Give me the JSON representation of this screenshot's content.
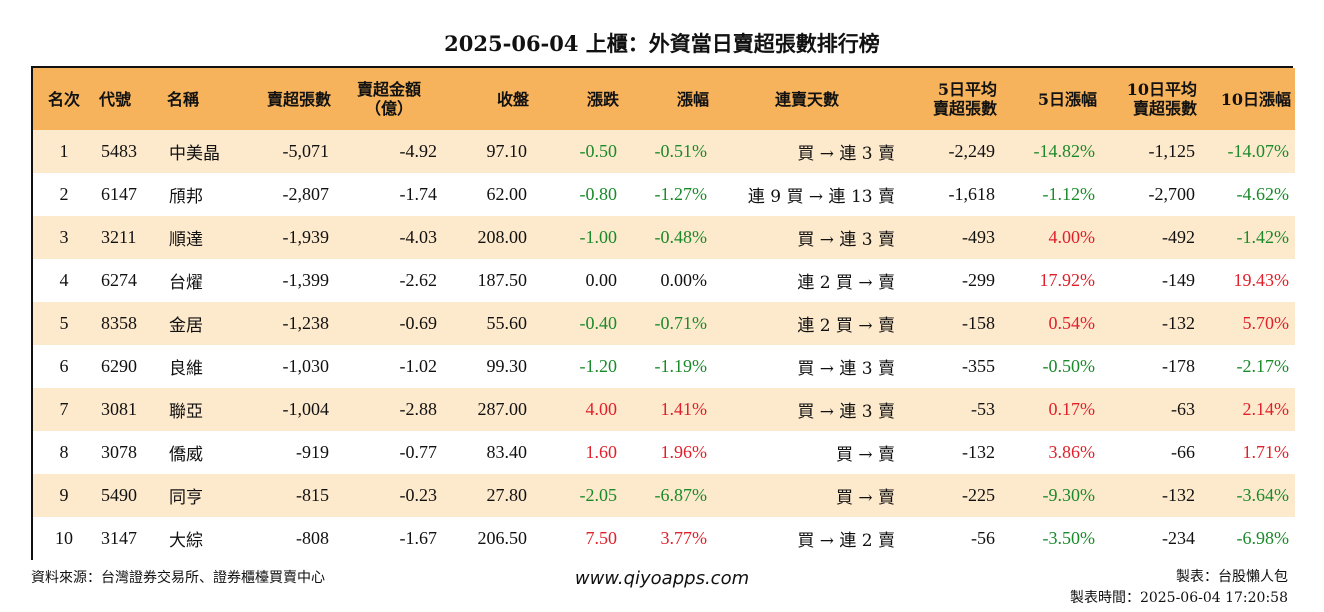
{
  "title": "2025-06-04 上櫃：外資當日賣超張數排行榜",
  "headers": {
    "rank": "名次",
    "code": "代號",
    "name": "名稱",
    "net_sell": "賣超張數",
    "amount_line1": "賣超金額",
    "amount_line2": "（億）",
    "close": "收盤",
    "change": "漲跌",
    "pct": "漲幅",
    "streak": "連賣天數",
    "avg5_line1": "5日平均",
    "avg5_line2": "賣超張數",
    "pct5": "5日漲幅",
    "avg10_line1": "10日平均",
    "avg10_line2": "賣超張數",
    "pct10": "10日漲幅"
  },
  "rows": [
    {
      "rank": "1",
      "code": "5483",
      "name": "中美晶",
      "net_sell": "-5,071",
      "amount": "-4.92",
      "close": "97.10",
      "change": "-0.50",
      "change_dir": "neg",
      "pct": "-0.51%",
      "pct_dir": "neg",
      "streak": "買 → 連 3 賣",
      "avg5": "-2,249",
      "pct5": "-14.82%",
      "pct5_dir": "neg",
      "avg10": "-1,125",
      "pct10": "-14.07%",
      "pct10_dir": "neg"
    },
    {
      "rank": "2",
      "code": "6147",
      "name": "頎邦",
      "net_sell": "-2,807",
      "amount": "-1.74",
      "close": "62.00",
      "change": "-0.80",
      "change_dir": "neg",
      "pct": "-1.27%",
      "pct_dir": "neg",
      "streak": "連 9 買 → 連 13 賣",
      "avg5": "-1,618",
      "pct5": "-1.12%",
      "pct5_dir": "neg",
      "avg10": "-2,700",
      "pct10": "-4.62%",
      "pct10_dir": "neg"
    },
    {
      "rank": "3",
      "code": "3211",
      "name": "順達",
      "net_sell": "-1,939",
      "amount": "-4.03",
      "close": "208.00",
      "change": "-1.00",
      "change_dir": "neg",
      "pct": "-0.48%",
      "pct_dir": "neg",
      "streak": "買 → 連 3 賣",
      "avg5": "-493",
      "pct5": "4.00%",
      "pct5_dir": "pos",
      "avg10": "-492",
      "pct10": "-1.42%",
      "pct10_dir": "neg"
    },
    {
      "rank": "4",
      "code": "6274",
      "name": "台燿",
      "net_sell": "-1,399",
      "amount": "-2.62",
      "close": "187.50",
      "change": "0.00",
      "change_dir": "zero",
      "pct": "0.00%",
      "pct_dir": "zero",
      "streak": "連 2 買 → 賣",
      "avg5": "-299",
      "pct5": "17.92%",
      "pct5_dir": "pos",
      "avg10": "-149",
      "pct10": "19.43%",
      "pct10_dir": "pos"
    },
    {
      "rank": "5",
      "code": "8358",
      "name": "金居",
      "net_sell": "-1,238",
      "amount": "-0.69",
      "close": "55.60",
      "change": "-0.40",
      "change_dir": "neg",
      "pct": "-0.71%",
      "pct_dir": "neg",
      "streak": "連 2 買 → 賣",
      "avg5": "-158",
      "pct5": "0.54%",
      "pct5_dir": "pos",
      "avg10": "-132",
      "pct10": "5.70%",
      "pct10_dir": "pos"
    },
    {
      "rank": "6",
      "code": "6290",
      "name": "良維",
      "net_sell": "-1,030",
      "amount": "-1.02",
      "close": "99.30",
      "change": "-1.20",
      "change_dir": "neg",
      "pct": "-1.19%",
      "pct_dir": "neg",
      "streak": "買 → 連 3 賣",
      "avg5": "-355",
      "pct5": "-0.50%",
      "pct5_dir": "neg",
      "avg10": "-178",
      "pct10": "-2.17%",
      "pct10_dir": "neg"
    },
    {
      "rank": "7",
      "code": "3081",
      "name": "聯亞",
      "net_sell": "-1,004",
      "amount": "-2.88",
      "close": "287.00",
      "change": "4.00",
      "change_dir": "pos",
      "pct": "1.41%",
      "pct_dir": "pos",
      "streak": "買 → 連 3 賣",
      "avg5": "-53",
      "pct5": "0.17%",
      "pct5_dir": "pos",
      "avg10": "-63",
      "pct10": "2.14%",
      "pct10_dir": "pos"
    },
    {
      "rank": "8",
      "code": "3078",
      "name": "僑威",
      "net_sell": "-919",
      "amount": "-0.77",
      "close": "83.40",
      "change": "1.60",
      "change_dir": "pos",
      "pct": "1.96%",
      "pct_dir": "pos",
      "streak": "買 → 賣",
      "avg5": "-132",
      "pct5": "3.86%",
      "pct5_dir": "pos",
      "avg10": "-66",
      "pct10": "1.71%",
      "pct10_dir": "pos"
    },
    {
      "rank": "9",
      "code": "5490",
      "name": "同亨",
      "net_sell": "-815",
      "amount": "-0.23",
      "close": "27.80",
      "change": "-2.05",
      "change_dir": "neg",
      "pct": "-6.87%",
      "pct_dir": "neg",
      "streak": "買 → 賣",
      "avg5": "-225",
      "pct5": "-9.30%",
      "pct5_dir": "neg",
      "avg10": "-132",
      "pct10": "-3.64%",
      "pct10_dir": "neg"
    },
    {
      "rank": "10",
      "code": "3147",
      "name": "大綜",
      "net_sell": "-808",
      "amount": "-1.67",
      "close": "206.50",
      "change": "7.50",
      "change_dir": "pos",
      "pct": "3.77%",
      "pct_dir": "pos",
      "streak": "買 → 連 2 賣",
      "avg5": "-56",
      "pct5": "-3.50%",
      "pct5_dir": "neg",
      "avg10": "-234",
      "pct10": "-6.98%",
      "pct10_dir": "neg"
    }
  ],
  "footer": {
    "source": "資料來源：台灣證券交易所、證券櫃檯買賣中心",
    "website": "www.qiyoapps.com",
    "maker": "製表：台股懶人包",
    "made_time": "製表時間：2025-06-04 17:20:58"
  },
  "colors": {
    "header_bg": "#f6b35c",
    "stripe_bg": "#fde9cc",
    "up": "#e0202a",
    "down": "#1a8a2a"
  }
}
